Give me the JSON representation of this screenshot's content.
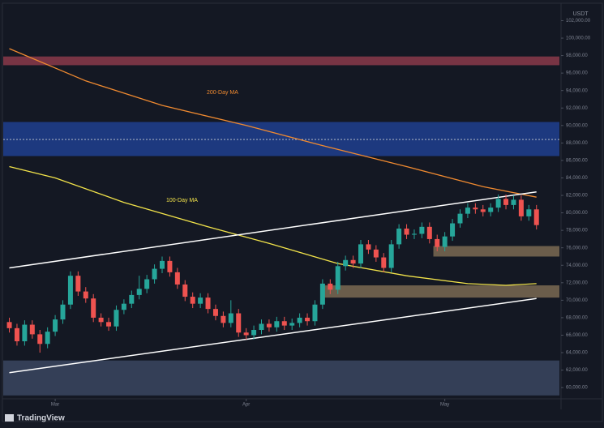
{
  "chart_data": {
    "type": "candlestick",
    "currency": "USDT",
    "up_color": "#26a69a",
    "down_color": "#ef5350",
    "grid": false,
    "xlim": [
      -0.8,
      72
    ],
    "ylim": [
      58900,
      103900
    ],
    "xticks": [
      {
        "value": 6,
        "label": "Mar"
      },
      {
        "value": 31,
        "label": "Apr"
      },
      {
        "value": 57,
        "label": "May"
      }
    ],
    "yticks": [
      {
        "value": 60000,
        "label": "60,000.00"
      },
      {
        "value": 62000,
        "label": "62,000.00"
      },
      {
        "value": 64000,
        "label": "64,000.00"
      },
      {
        "value": 66000,
        "label": "66,000.00"
      },
      {
        "value": 68000,
        "label": "68,000.00"
      },
      {
        "value": 70000,
        "label": "70,000.00"
      },
      {
        "value": 72000,
        "label": "72,000.00"
      },
      {
        "value": 74000,
        "label": "74,000.00"
      },
      {
        "value": 76000,
        "label": "76,000.00"
      },
      {
        "value": 78000,
        "label": "78,000.00"
      },
      {
        "value": 80000,
        "label": "80,000.00"
      },
      {
        "value": 82000,
        "label": "82,000.00"
      },
      {
        "value": 84000,
        "label": "84,000.00"
      },
      {
        "value": 86000,
        "label": "86,000.00"
      },
      {
        "value": 88000,
        "label": "88,000.00"
      },
      {
        "value": 90000,
        "label": "90,000.00"
      },
      {
        "value": 92000,
        "label": "92,000.00"
      },
      {
        "value": 94000,
        "label": "94,000.00"
      },
      {
        "value": 96000,
        "label": "96,000.00"
      },
      {
        "value": 98000,
        "label": "98,000.00"
      },
      {
        "value": 100000,
        "label": "100,000.00"
      },
      {
        "value": 102000,
        "label": "102,000.00"
      }
    ],
    "zones": [
      {
        "low": 96900,
        "high": 97900,
        "color": "#8a3a4a"
      },
      {
        "low": 86500,
        "high": 90400,
        "color": "#1e3f8f"
      },
      {
        "low": 75000,
        "high": 76200,
        "color": "#7a6a52",
        "from": 55.5
      },
      {
        "low": 70300,
        "high": 71700,
        "color": "#7a6a52",
        "from": 41
      },
      {
        "low": 59100,
        "high": 63100,
        "color": "#3a4660"
      }
    ],
    "levels": [
      88400
    ],
    "series": [
      {
        "name": "200-Day MA",
        "color": "#f08a30",
        "x": [
          0,
          10,
          20,
          31,
          41,
          52,
          62,
          69
        ],
        "values": [
          98800,
          95100,
          92300,
          90000,
          87700,
          85300,
          83000,
          81800
        ]
      },
      {
        "name": "100-Day MA",
        "color": "#f2e34a",
        "x": [
          0,
          6,
          15,
          26,
          34,
          43,
          52,
          60,
          65,
          69
        ],
        "values": [
          85300,
          84000,
          81200,
          78400,
          76500,
          74200,
          72800,
          71900,
          71700,
          71900
        ]
      },
      {
        "color": "#ffffff",
        "x": [
          0,
          69
        ],
        "values": [
          73700,
          82400
        ]
      },
      {
        "color": "#ffffff",
        "x": [
          0,
          69
        ],
        "values": [
          61700,
          70200
        ]
      }
    ],
    "candles": [
      [
        67500,
        68000,
        66300,
        66800
      ],
      [
        66800,
        67300,
        64800,
        65300
      ],
      [
        65300,
        67700,
        64800,
        67200
      ],
      [
        67200,
        67700,
        65600,
        66100
      ],
      [
        66100,
        66600,
        64000,
        65000
      ],
      [
        65000,
        66900,
        64500,
        66400
      ],
      [
        66400,
        68300,
        65900,
        67800
      ],
      [
        67800,
        70000,
        67300,
        69500
      ],
      [
        69500,
        73300,
        69000,
        72800
      ],
      [
        72800,
        73300,
        70500,
        71000
      ],
      [
        71000,
        71500,
        69700,
        70200
      ],
      [
        70200,
        70700,
        67500,
        68000
      ],
      [
        68000,
        68500,
        67000,
        67500
      ],
      [
        67500,
        68000,
        66500,
        67000
      ],
      [
        67000,
        69400,
        66500,
        68900
      ],
      [
        68900,
        70100,
        68400,
        69600
      ],
      [
        69600,
        71100,
        69100,
        70600
      ],
      [
        70600,
        72800,
        70100,
        71300
      ],
      [
        71300,
        72900,
        70800,
        72400
      ],
      [
        72400,
        74100,
        71900,
        73600
      ],
      [
        73600,
        75000,
        73100,
        74500
      ],
      [
        74500,
        75000,
        72700,
        73200
      ],
      [
        73200,
        73700,
        71300,
        71800
      ],
      [
        71800,
        72300,
        69900,
        70400
      ],
      [
        70400,
        70900,
        69100,
        69600
      ],
      [
        69600,
        70800,
        69100,
        70300
      ],
      [
        70300,
        70800,
        68500,
        69000
      ],
      [
        69000,
        69500,
        67700,
        68200
      ],
      [
        68200,
        68700,
        66900,
        67400
      ],
      [
        67400,
        70000,
        66900,
        68500
      ],
      [
        68500,
        69000,
        65800,
        66300
      ],
      [
        66300,
        66800,
        65500,
        66000
      ],
      [
        66000,
        67100,
        65500,
        66600
      ],
      [
        66600,
        67800,
        66100,
        67300
      ],
      [
        67300,
        67800,
        66400,
        66900
      ],
      [
        66900,
        68100,
        66400,
        67600
      ],
      [
        67600,
        68100,
        66600,
        67100
      ],
      [
        67100,
        67900,
        66600,
        67400
      ],
      [
        67400,
        68500,
        66900,
        68000
      ],
      [
        68000,
        68500,
        67100,
        67600
      ],
      [
        67600,
        70000,
        67100,
        69500
      ],
      [
        69500,
        72400,
        69000,
        71900
      ],
      [
        71900,
        72400,
        70700,
        71200
      ],
      [
        71200,
        74400,
        70700,
        73900
      ],
      [
        73900,
        75100,
        73400,
        74600
      ],
      [
        74600,
        75100,
        73700,
        74200
      ],
      [
        74200,
        76900,
        73700,
        76400
      ],
      [
        76400,
        76900,
        75300,
        75800
      ],
      [
        75800,
        76300,
        74400,
        74900
      ],
      [
        74900,
        75400,
        73200,
        73700
      ],
      [
        73700,
        76900,
        73200,
        76400
      ],
      [
        76400,
        78700,
        75900,
        78200
      ],
      [
        78200,
        78700,
        77000,
        77500
      ],
      [
        77500,
        78100,
        77000,
        77600
      ],
      [
        77600,
        78900,
        77100,
        78400
      ],
      [
        78400,
        78900,
        76500,
        77000
      ],
      [
        77000,
        77500,
        75600,
        76100
      ],
      [
        76100,
        77800,
        75600,
        77300
      ],
      [
        77300,
        79300,
        76800,
        78800
      ],
      [
        78800,
        80400,
        78300,
        79900
      ],
      [
        79900,
        81100,
        79400,
        80600
      ],
      [
        80600,
        81100,
        79900,
        80400
      ],
      [
        80400,
        80900,
        79600,
        80100
      ],
      [
        80100,
        81100,
        79600,
        80600
      ],
      [
        80600,
        82100,
        80100,
        81600
      ],
      [
        81600,
        82100,
        80400,
        80900
      ],
      [
        80900,
        82000,
        80400,
        81500
      ],
      [
        81500,
        82000,
        79100,
        79600
      ],
      [
        79600,
        80900,
        79100,
        80400
      ],
      [
        80400,
        80900,
        78100,
        78600
      ]
    ]
  },
  "footer": {
    "brand": "TradingView"
  }
}
